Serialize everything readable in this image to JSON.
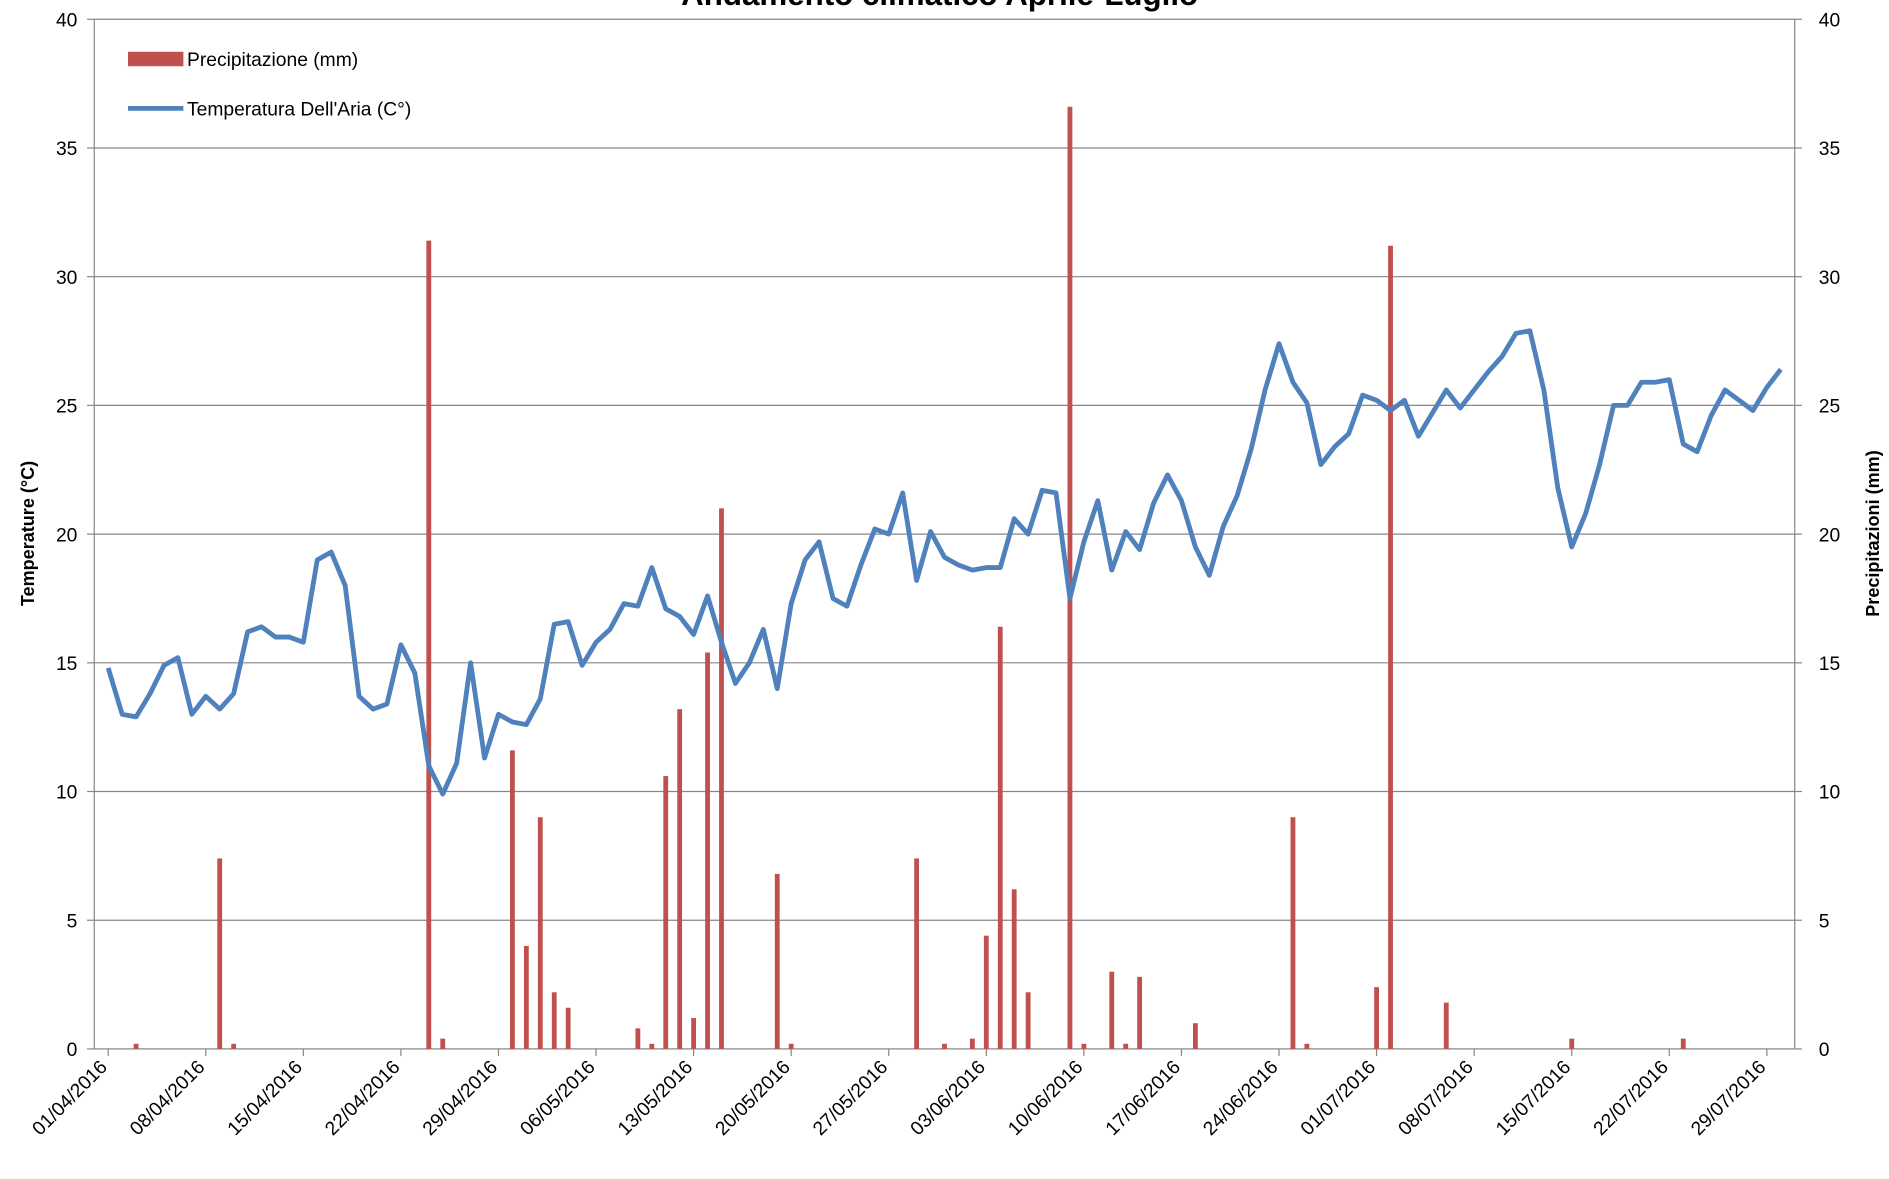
{
  "chart_data": {
    "type": "combo",
    "title": "Andamento climatico Aprile-Luglio",
    "y_label": "Temperature (°C)",
    "y2_label": "Precipitazioni (mm)",
    "categories": [
      "01/04/2016",
      null,
      null,
      null,
      null,
      null,
      null,
      "08/04/2016",
      null,
      null,
      null,
      null,
      null,
      null,
      "15/04/2016",
      null,
      null,
      null,
      null,
      null,
      null,
      "22/04/2016",
      null,
      null,
      null,
      null,
      null,
      null,
      "29/04/2016",
      null,
      null,
      null,
      null,
      null,
      null,
      "06/05/2016",
      null,
      null,
      null,
      null,
      null,
      null,
      "13/05/2016",
      null,
      null,
      null,
      null,
      null,
      null,
      "20/05/2016",
      null,
      null,
      null,
      null,
      null,
      null,
      "27/05/2016",
      null,
      null,
      null,
      null,
      null,
      null,
      "03/06/2016",
      null,
      null,
      null,
      null,
      null,
      null,
      "10/06/2016",
      null,
      null,
      null,
      null,
      null,
      null,
      "17/06/2016",
      null,
      null,
      null,
      null,
      null,
      null,
      "24/06/2016",
      null,
      null,
      null,
      null,
      null,
      null,
      "01/07/2016",
      null,
      null,
      null,
      null,
      null,
      null,
      "08/07/2016",
      null,
      null,
      null,
      null,
      null,
      null,
      "15/07/2016",
      null,
      null,
      null,
      null,
      null,
      null,
      "22/07/2016",
      null,
      null,
      null,
      null,
      null,
      null,
      "29/07/2016",
      null
    ],
    "series": [
      {
        "name": "Precipitazione (mm)",
        "type": "bar",
        "axis": "y2",
        "color": "#c0504d",
        "values": [
          0,
          0,
          0.2,
          0,
          0,
          0,
          0,
          0,
          7.4,
          0.2,
          0,
          0,
          0,
          0,
          0,
          0,
          0,
          0,
          0,
          0,
          0,
          0,
          0,
          31.4,
          0.4,
          0,
          0,
          0,
          0,
          11.6,
          4.0,
          9.0,
          2.2,
          1.6,
          0,
          0,
          0,
          0,
          0.8,
          0.2,
          10.6,
          13.2,
          1.2,
          15.4,
          21.0,
          0,
          0,
          0,
          6.8,
          0.2,
          0,
          0,
          0,
          0,
          0,
          0,
          0,
          0,
          7.4,
          0,
          0.2,
          0,
          0.4,
          4.4,
          16.4,
          6.2,
          2.2,
          0,
          0,
          36.6,
          0.2,
          0,
          3.0,
          0.2,
          2.8,
          0,
          0,
          0,
          1.0,
          0,
          0,
          0,
          0,
          0,
          0,
          9.0,
          0.2,
          0,
          0,
          0,
          0,
          2.4,
          31.2,
          0,
          0,
          0,
          1.8,
          0,
          0,
          0,
          0,
          0,
          0,
          0,
          0,
          0.4,
          0,
          0,
          0,
          0,
          0,
          0,
          0,
          0.4,
          0,
          0,
          0,
          0,
          0,
          0,
          0
        ]
      },
      {
        "name": "Temperatura Dell'Aria (C°)",
        "type": "line",
        "axis": "y",
        "color": "#4f81bd",
        "values": [
          14.8,
          13.0,
          12.9,
          13.8,
          14.9,
          15.2,
          13.0,
          13.7,
          13.2,
          13.8,
          16.2,
          16.4,
          16.0,
          16.0,
          15.8,
          19.0,
          19.3,
          18.0,
          13.7,
          13.2,
          13.4,
          15.7,
          14.6,
          11.0,
          9.9,
          11.1,
          15.0,
          11.3,
          13.0,
          12.7,
          12.6,
          13.6,
          16.5,
          16.6,
          14.9,
          15.8,
          16.3,
          17.3,
          17.2,
          18.7,
          17.1,
          16.8,
          16.1,
          17.6,
          15.8,
          14.2,
          15.0,
          16.3,
          14.0,
          17.3,
          19.0,
          19.7,
          17.5,
          17.2,
          18.8,
          20.2,
          20.0,
          21.6,
          18.2,
          20.1,
          19.1,
          18.8,
          18.6,
          18.7,
          18.7,
          20.6,
          20.0,
          21.7,
          21.6,
          17.5,
          19.7,
          21.3,
          18.6,
          20.1,
          19.4,
          21.2,
          22.3,
          21.3,
          19.5,
          18.4,
          20.3,
          21.5,
          23.3,
          25.6,
          27.4,
          25.9,
          25.1,
          22.7,
          23.4,
          23.9,
          25.4,
          25.2,
          24.8,
          25.2,
          23.8,
          24.7,
          25.6,
          24.9,
          25.6,
          26.3,
          26.9,
          27.8,
          27.9,
          25.6,
          21.8,
          19.5,
          20.8,
          22.7,
          25.0,
          25.0,
          25.9,
          25.9,
          26.0,
          23.5,
          23.2,
          24.6,
          25.6,
          25.2,
          24.8,
          25.7,
          26.4
        ]
      }
    ],
    "ylim": [
      0,
      40
    ],
    "yticks": [
      0,
      5,
      10,
      15,
      20,
      25,
      30,
      35,
      40
    ],
    "y2lim": [
      0,
      40
    ],
    "y2ticks": [
      0,
      5,
      10,
      15,
      20,
      25,
      30,
      35,
      40
    ],
    "grid": true,
    "legend": "top-left"
  }
}
